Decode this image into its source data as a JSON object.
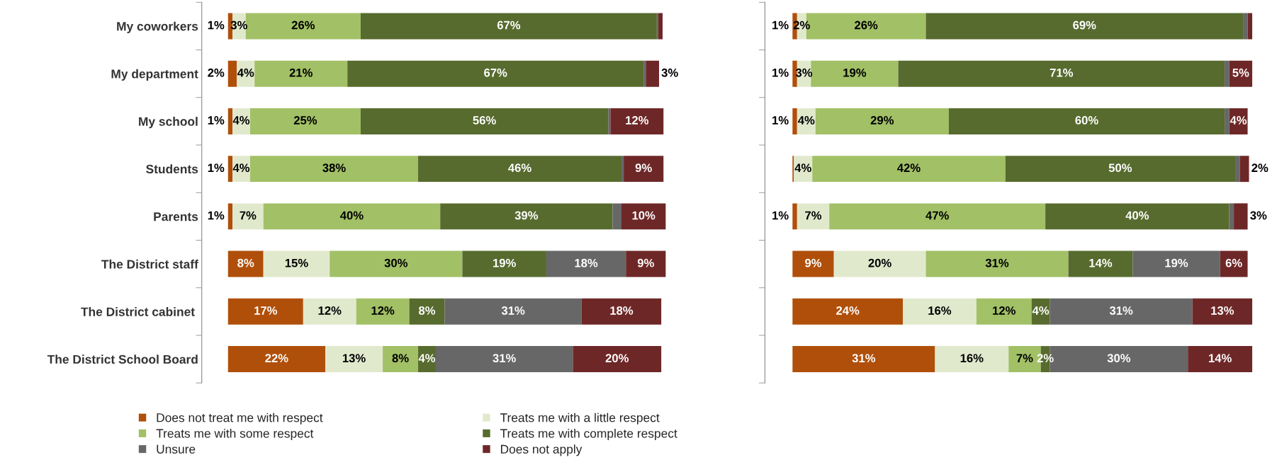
{
  "chart_data": [
    {
      "type": "bar",
      "orientation": "horizontal",
      "stacked": true,
      "tick_labels": "y",
      "legend": "bottom",
      "categories": [
        "My coworkers",
        "My department",
        "My school",
        "Students",
        "Parents",
        "The District staff",
        "The District cabinet ",
        "The District School Board"
      ],
      "series": [
        {
          "name": "Does not treat me with respect",
          "color": "#b04f0a",
          "values": [
            1,
            2,
            1,
            1,
            1,
            8,
            17,
            22
          ],
          "value_labels": [
            "1%",
            "2%",
            "1%",
            "1%",
            "1%",
            "8%",
            "17%",
            "22%"
          ]
        },
        {
          "name": "Treats me with a little respect",
          "color": "#e1e9cd",
          "values": [
            3,
            4,
            4,
            4,
            7,
            15,
            12,
            13
          ],
          "value_labels": [
            "3%",
            "4%",
            "4%",
            "4%",
            "7%",
            "15%",
            "12%",
            "13%"
          ]
        },
        {
          "name": "Treats me with some respect",
          "color": "#a2c066",
          "values": [
            26,
            21,
            25,
            38,
            40,
            30,
            12,
            8
          ],
          "value_labels": [
            "26%",
            "21%",
            "25%",
            "38%",
            "40%",
            "30%",
            "12%",
            "8%"
          ]
        },
        {
          "name": "Treats me with complete respect",
          "color": "#576b2e",
          "values": [
            67,
            67,
            56,
            46,
            39,
            19,
            8,
            4
          ],
          "value_labels": [
            "67%",
            "67%",
            "56%",
            "46%",
            "39%",
            "19%",
            "8%",
            "4%"
          ]
        },
        {
          "name": "Unsure",
          "color": "#676767",
          "values": [
            0.3,
            0.5,
            0.5,
            0.5,
            2,
            18,
            31,
            31
          ],
          "value_labels": [
            null,
            null,
            null,
            null,
            null,
            "18%",
            "31%",
            "31%"
          ]
        },
        {
          "name": "Does not apply",
          "color": "#6e2727",
          "values": [
            1,
            3,
            12,
            9,
            10,
            9,
            18,
            20
          ],
          "value_labels": [
            null,
            "3%",
            "12%",
            "9%",
            "10%",
            "9%",
            "18%",
            "20%"
          ]
        }
      ]
    },
    {
      "type": "bar",
      "orientation": "horizontal",
      "stacked": true,
      "tick_labels": false,
      "categories": [
        null,
        null,
        null,
        null,
        null,
        null,
        null,
        null
      ],
      "series": [
        {
          "color": "#b04f0a",
          "values": [
            1,
            1,
            1,
            0.3,
            1,
            9,
            24,
            31
          ],
          "value_labels": [
            "1%",
            "1%",
            "1%",
            null,
            "1%",
            "9%",
            "24%",
            "31%"
          ]
        },
        {
          "color": "#e1e9cd",
          "values": [
            2,
            3,
            4,
            4,
            7,
            20,
            16,
            16
          ],
          "value_labels": [
            "2%",
            "3%",
            "4%",
            "4%",
            "7%",
            "20%",
            "16%",
            "16%"
          ]
        },
        {
          "color": "#a2c066",
          "values": [
            26,
            19,
            29,
            42,
            47,
            31,
            12,
            7
          ],
          "value_labels": [
            "26%",
            "19%",
            "29%",
            "42%",
            "47%",
            "31%",
            "12%",
            "7%"
          ]
        },
        {
          "color": "#576b2e",
          "values": [
            69,
            71,
            60,
            50,
            40,
            14,
            4,
            2
          ],
          "value_labels": [
            "69%",
            "71%",
            "60%",
            "50%",
            "40%",
            "14%",
            "4%",
            "2%"
          ]
        },
        {
          "color": "#676767",
          "values": [
            1,
            1,
            1,
            1,
            1,
            19,
            31,
            30
          ],
          "value_labels": [
            null,
            null,
            null,
            null,
            null,
            "19%",
            "31%",
            "30%"
          ]
        },
        {
          "color": "#6e2727",
          "values": [
            1,
            5,
            4,
            2,
            3,
            6,
            13,
            14
          ],
          "value_labels": [
            null,
            "5%",
            "4%",
            "2%",
            "3%",
            "6%",
            "13%",
            "14%"
          ]
        }
      ]
    }
  ]
}
